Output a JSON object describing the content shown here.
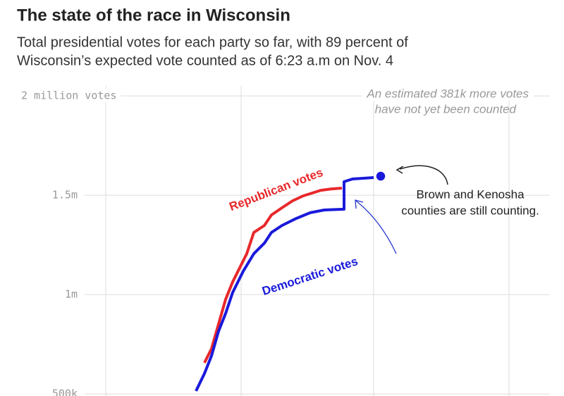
{
  "chart_data": {
    "type": "line",
    "title": "The state of the race in Wisconsin",
    "subtitle": [
      "Total presidential votes for each party so far, with 89 percent of",
      "Wisconsin’s expected vote counted as of 6:23 a.m on Nov. 4"
    ],
    "xlim": [
      0,
      100
    ],
    "xticks": [
      18.75,
      42.75,
      66.25,
      90.25
    ],
    "ylim": [
      490000,
      2050000
    ],
    "yticks": [
      {
        "value": 2000000,
        "label": "2 million votes"
      },
      {
        "value": 1500000,
        "label": "1.5m"
      },
      {
        "value": 1000000,
        "label": "1m"
      },
      {
        "value": 500000,
        "label": "500k"
      }
    ],
    "grid": true,
    "series": [
      {
        "name": "Republican votes",
        "color": "#e8282b",
        "x": [
          36.25,
          37.5,
          38.75,
          40,
          41.25,
          42.5,
          43.75,
          45,
          46.88,
          48.13,
          50,
          51.88,
          53.75,
          56.88,
          58.75,
          60.63
        ],
        "values": [
          657000,
          728000,
          852000,
          976000,
          1064000,
          1135000,
          1206000,
          1313000,
          1348000,
          1401000,
          1437000,
          1472000,
          1497000,
          1525000,
          1532000,
          1536000
        ]
      },
      {
        "name": "Democratic votes",
        "color": "#1a1adb",
        "x": [
          34.75,
          36.25,
          37.5,
          38.75,
          40,
          41.25,
          43.13,
          45,
          46.88,
          48.13,
          50,
          52.5,
          55,
          57.5,
          61,
          61,
          62.5,
          66.25
        ],
        "values": [
          515000,
          603000,
          692000,
          816000,
          905000,
          1011000,
          1118000,
          1206000,
          1259000,
          1313000,
          1348000,
          1383000,
          1412000,
          1426000,
          1430000,
          1568000,
          1582000,
          1589000
        ],
        "marker": {
          "x": 67.5,
          "value": 1596000
        }
      }
    ],
    "annotations": [
      [
        "An estimated 381k more votes",
        "have not yet been counted"
      ],
      [
        "Brown and Kenosha",
        "counties are still counting."
      ]
    ]
  }
}
